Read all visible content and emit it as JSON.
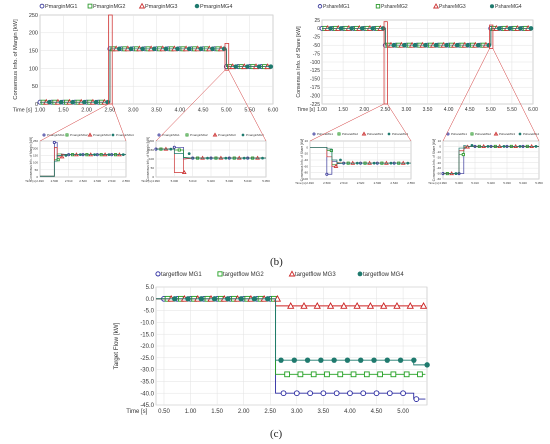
{
  "captions": {
    "b": "(b)",
    "c": "(c)"
  },
  "chart_data": [
    {
      "type": "line",
      "id": "margin_main",
      "ylabel": "Consensus Info. of Margin [kW]",
      "xlabel": "Time [s]",
      "xlim": [
        1.0,
        6.0
      ],
      "ylim": [
        0,
        250
      ],
      "xticks": [
        "1.00",
        "1.50",
        "2.00",
        "2.50",
        "3.00",
        "3.50",
        "4.00",
        "4.50",
        "5.00",
        "5.50",
        "6.00"
      ],
      "yticks": [
        "0",
        "50",
        "100",
        "150",
        "200",
        "250"
      ],
      "grid": true,
      "legend": [
        "PmarginMG1",
        "PmarginMG2",
        "PmarginMG3",
        "PmarginMG4"
      ],
      "legend_position": "top",
      "series": [
        {
          "name": "PmarginMG1",
          "color": "#3a3a9a",
          "marker": "circle",
          "x": [
            1.0,
            2.5,
            2.5,
            5.0,
            5.0,
            5.95
          ],
          "y": [
            5,
            5,
            155,
            155,
            105,
            105
          ]
        },
        {
          "name": "PmarginMG2",
          "color": "#2e9a2e",
          "marker": "square",
          "x": [
            1.0,
            2.5,
            2.5,
            5.0,
            5.0,
            5.95
          ],
          "y": [
            5,
            5,
            155,
            155,
            105,
            105
          ]
        },
        {
          "name": "PmarginMG3",
          "color": "#cc3333",
          "marker": "triangle",
          "x": [
            1.0,
            2.5,
            2.5,
            5.0,
            5.0,
            5.95
          ],
          "y": [
            5,
            5,
            155,
            155,
            105,
            105
          ]
        },
        {
          "name": "PmarginMG4",
          "color": "#1f7a6e",
          "marker": "dot",
          "x": [
            1.0,
            2.5,
            2.5,
            5.0,
            5.0,
            5.95
          ],
          "y": [
            5,
            5,
            155,
            155,
            105,
            105
          ]
        }
      ]
    },
    {
      "type": "line",
      "id": "share_main",
      "ylabel": "Consensus Info. of Share [kW]",
      "xlabel": "Time [s]",
      "xlim": [
        1.0,
        6.0
      ],
      "ylim": [
        -225,
        25
      ],
      "xticks": [
        "1.00",
        "1.50",
        "2.00",
        "2.50",
        "3.00",
        "3.50",
        "4.00",
        "4.50",
        "5.00",
        "5.50",
        "6.00"
      ],
      "yticks": [
        "25",
        "0",
        "-25",
        "-50",
        "-75",
        "-100",
        "-125",
        "-150",
        "-175",
        "-200",
        "-225"
      ],
      "grid": true,
      "legend": [
        "PshareMG1",
        "PshareMG2",
        "PshareMG3",
        "PshareMG4"
      ],
      "legend_position": "top",
      "series": [
        {
          "name": "PshareMG1",
          "color": "#3a3a9a",
          "marker": "circle",
          "x": [
            1.0,
            2.5,
            2.5,
            5.0,
            5.0,
            5.95
          ],
          "y": [
            0,
            0,
            -50,
            -50,
            0,
            0
          ]
        },
        {
          "name": "PshareMG2",
          "color": "#2e9a2e",
          "marker": "square",
          "x": [
            1.0,
            2.5,
            2.5,
            5.0,
            5.0,
            5.95
          ],
          "y": [
            0,
            0,
            -50,
            -50,
            0,
            0
          ]
        },
        {
          "name": "PshareMG3",
          "color": "#cc3333",
          "marker": "triangle",
          "x": [
            1.0,
            2.5,
            2.5,
            5.0,
            5.0,
            5.95
          ],
          "y": [
            0,
            0,
            -50,
            -50,
            0,
            0
          ]
        },
        {
          "name": "PshareMG4",
          "color": "#1f7a6e",
          "marker": "dot",
          "x": [
            1.0,
            2.5,
            2.5,
            5.0,
            5.0,
            5.95
          ],
          "y": [
            0,
            0,
            -50,
            -50,
            0,
            0
          ]
        }
      ]
    },
    {
      "type": "line",
      "id": "margin_zoom1",
      "ylabel": "Consensus Info. of Margin [kW]",
      "xlabel": "Time [s]",
      "xlim": [
        2.49,
        2.55
      ],
      "ylim": [
        0,
        250
      ],
      "xticks": [
        "2.490",
        "2.500",
        "2.510",
        "2.520",
        "2.530",
        "2.540",
        "2.550"
      ],
      "yticks": [
        "0",
        "50",
        "100",
        "150",
        "200",
        "250"
      ],
      "legend": [
        "PmarginMG1",
        "PmarginMG2",
        "PmarginMG3",
        "PmarginMG4"
      ],
      "series": [
        {
          "name": "PmarginMG1",
          "color": "#3a3a9a",
          "marker": "circle",
          "x": [
            2.49,
            2.5,
            2.5,
            2.502,
            2.502,
            2.505,
            2.505,
            2.51,
            2.55
          ],
          "y": [
            5,
            5,
            240,
            240,
            150,
            150,
            160,
            155,
            155
          ]
        },
        {
          "name": "PmarginMG2",
          "color": "#2e9a2e",
          "marker": "square",
          "x": [
            2.49,
            2.5,
            2.5,
            2.502,
            2.502,
            2.505,
            2.505,
            2.51,
            2.55
          ],
          "y": [
            5,
            5,
            120,
            120,
            160,
            160,
            150,
            155,
            155
          ]
        },
        {
          "name": "PmarginMG3",
          "color": "#cc3333",
          "marker": "triangle",
          "x": [
            2.49,
            2.5,
            2.5,
            2.502,
            2.502,
            2.505,
            2.505,
            2.51,
            2.55
          ],
          "y": [
            5,
            5,
            205,
            205,
            140,
            140,
            158,
            155,
            155
          ]
        },
        {
          "name": "PmarginMG4",
          "color": "#1f7a6e",
          "marker": "dot",
          "x": [
            2.49,
            2.5,
            2.5,
            2.502,
            2.502,
            2.505,
            2.505,
            2.51,
            2.55
          ],
          "y": [
            5,
            5,
            110,
            110,
            150,
            150,
            152,
            155,
            155
          ]
        }
      ]
    },
    {
      "type": "line",
      "id": "margin_zoom2",
      "ylabel": "Consensus Info. of Margin [kW]",
      "xlabel": "Time [s]",
      "xlim": [
        4.99,
        5.05
      ],
      "ylim": [
        0,
        200
      ],
      "xticks": [
        "4.990",
        "5.000",
        "5.010",
        "5.020",
        "5.030",
        "5.040",
        "5.050"
      ],
      "yticks": [
        "0",
        "50",
        "100",
        "150",
        "200"
      ],
      "legend": [
        "PmarginMG1",
        "PmarginMG2",
        "PmarginMG3",
        "PmarginMG4"
      ],
      "series": [
        {
          "name": "PmarginMG1",
          "color": "#3a3a9a",
          "marker": "circle",
          "x": [
            4.99,
            5.0,
            5.0,
            5.005,
            5.005,
            5.01,
            5.05
          ],
          "y": [
            155,
            155,
            165,
            165,
            100,
            105,
            105
          ]
        },
        {
          "name": "PmarginMG2",
          "color": "#2e9a2e",
          "marker": "square",
          "x": [
            4.99,
            5.0,
            5.0,
            5.005,
            5.005,
            5.01,
            5.05
          ],
          "y": [
            155,
            155,
            150,
            150,
            110,
            105,
            105
          ]
        },
        {
          "name": "PmarginMG3",
          "color": "#cc3333",
          "marker": "triangle",
          "x": [
            4.99,
            5.0,
            5.0,
            5.005,
            5.005,
            5.01,
            5.05
          ],
          "y": [
            155,
            155,
            25,
            25,
            100,
            105,
            105
          ]
        },
        {
          "name": "PmarginMG4",
          "color": "#1f7a6e",
          "marker": "dot",
          "x": [
            4.99,
            5.0,
            5.0,
            5.005,
            5.005,
            5.01,
            5.05
          ],
          "y": [
            155,
            155,
            130,
            130,
            108,
            105,
            105
          ]
        }
      ]
    },
    {
      "type": "line",
      "id": "share_zoom1",
      "ylabel": "Consensus Info. of Share [kW]",
      "xlabel": "Time [s]",
      "xlim": [
        2.49,
        2.55
      ],
      "ylim": [
        -100,
        20
      ],
      "xticks": [
        "2.490",
        "2.500",
        "2.510",
        "2.520",
        "2.530",
        "2.540",
        "2.550"
      ],
      "yticks": [
        "20",
        "0",
        "-20",
        "-40",
        "-60",
        "-80",
        "-100"
      ],
      "legend": [
        "PshareMG1",
        "PshareMG2",
        "PshareMG3",
        "PshareMG4"
      ],
      "series": [
        {
          "name": "PshareMG1",
          "color": "#3a3a9a",
          "marker": "circle",
          "x": [
            2.49,
            2.5,
            2.5,
            2.503,
            2.503,
            2.506,
            2.506,
            2.51,
            2.55
          ],
          "y": [
            0,
            0,
            -85,
            -85,
            -45,
            -45,
            -52,
            -50,
            -50
          ]
        },
        {
          "name": "PshareMG2",
          "color": "#2e9a2e",
          "marker": "square",
          "x": [
            2.49,
            2.5,
            2.5,
            2.503,
            2.503,
            2.506,
            2.506,
            2.51,
            2.55
          ],
          "y": [
            0,
            0,
            -10,
            -10,
            -55,
            -55,
            -48,
            -50,
            -50
          ]
        },
        {
          "name": "PshareMG3",
          "color": "#cc3333",
          "marker": "triangle",
          "x": [
            2.49,
            2.5,
            2.5,
            2.503,
            2.503,
            2.506,
            2.506,
            2.51,
            2.55
          ],
          "y": [
            0,
            0,
            -30,
            -30,
            -60,
            -60,
            -49,
            -50,
            -50
          ]
        },
        {
          "name": "PshareMG4",
          "color": "#1f7a6e",
          "marker": "dot",
          "x": [
            2.49,
            2.5,
            2.5,
            2.503,
            2.503,
            2.506,
            2.506,
            2.51,
            2.55
          ],
          "y": [
            0,
            0,
            -5,
            -5,
            -40,
            -40,
            -51,
            -50,
            -50
          ]
        }
      ]
    },
    {
      "type": "line",
      "id": "share_zoom2",
      "ylabel": "Consensus Info. of Share [kW]",
      "xlabel": "Time [s]",
      "xlim": [
        4.99,
        5.05
      ],
      "ylim": [
        -60,
        10
      ],
      "xticks": [
        "4.990",
        "5.000",
        "5.010",
        "5.020",
        "5.030",
        "5.040",
        "5.050"
      ],
      "yticks": [
        "10",
        "0",
        "-10",
        "-20",
        "-30",
        "-40",
        "-50",
        "-60"
      ],
      "legend": [
        "PshareMG1",
        "PshareMG2",
        "PshareMG3",
        "PshareMG4"
      ],
      "series": [
        {
          "name": "PshareMG1",
          "color": "#3a3a9a",
          "marker": "circle",
          "x": [
            4.99,
            5.0,
            5.0,
            5.003,
            5.003,
            5.006,
            5.05
          ],
          "y": [
            -50,
            -50,
            -50,
            -50,
            -5,
            0,
            0
          ]
        },
        {
          "name": "PshareMG2",
          "color": "#2e9a2e",
          "marker": "square",
          "x": [
            4.99,
            5.0,
            5.0,
            5.003,
            5.003,
            5.006,
            5.05
          ],
          "y": [
            -50,
            -50,
            -15,
            -15,
            -3,
            0,
            0
          ]
        },
        {
          "name": "PshareMG3",
          "color": "#cc3333",
          "marker": "triangle",
          "x": [
            4.99,
            5.0,
            5.0,
            5.003,
            5.003,
            5.006,
            5.05
          ],
          "y": [
            -50,
            -50,
            -8,
            -8,
            -1,
            0,
            0
          ]
        },
        {
          "name": "PshareMG4",
          "color": "#1f7a6e",
          "marker": "dot",
          "x": [
            4.99,
            5.0,
            5.0,
            5.003,
            5.003,
            5.006,
            5.05
          ],
          "y": [
            -50,
            -50,
            -3,
            -3,
            2,
            0,
            0
          ]
        }
      ]
    },
    {
      "type": "line",
      "id": "targetflow",
      "ylabel": "Target Flow [kW]",
      "xlabel": "Time [s]",
      "xlim": [
        0.35,
        5.45
      ],
      "ylim": [
        -45,
        5
      ],
      "xticks": [
        "0.50",
        "1.00",
        "1.50",
        "2.00",
        "2.50",
        "3.00",
        "3.50",
        "4.00",
        "4.50",
        "5.00"
      ],
      "yticks": [
        "5.0",
        "0.0",
        "-5.0",
        "-10.0",
        "-15.0",
        "-20.0",
        "-25.0",
        "-30.0",
        "-35.0",
        "-40.0",
        "-45.0"
      ],
      "grid": true,
      "legend": [
        "targetflow MG1",
        "targetflow MG2",
        "targetflow MG3",
        "targetflow MG4"
      ],
      "legend_position": "top",
      "series": [
        {
          "name": "targetflow MG1",
          "color": "#2a2aa0",
          "marker": "circle",
          "x": [
            0.35,
            2.6,
            2.6,
            5.2,
            5.2,
            5.42
          ],
          "y": [
            0,
            0,
            -40,
            -40,
            -42.5,
            -42.5
          ]
        },
        {
          "name": "targetflow MG2",
          "color": "#22a022",
          "marker": "square",
          "x": [
            0.35,
            2.6,
            2.6,
            5.2,
            5.2,
            5.42
          ],
          "y": [
            0,
            0,
            -32,
            -32,
            -32,
            -32
          ]
        },
        {
          "name": "targetflow MG3",
          "color": "#cc2222",
          "marker": "triangle",
          "x": [
            0.35,
            2.6,
            2.6,
            5.2,
            5.2,
            5.42
          ],
          "y": [
            0,
            0,
            -3,
            -3,
            -3,
            -3
          ]
        },
        {
          "name": "targetflow MG4",
          "color": "#1f7a6e",
          "marker": "dot",
          "x": [
            0.35,
            2.6,
            2.6,
            5.2,
            5.2,
            5.42
          ],
          "y": [
            0,
            0,
            -26,
            -26,
            -28,
            -28
          ]
        }
      ]
    }
  ]
}
